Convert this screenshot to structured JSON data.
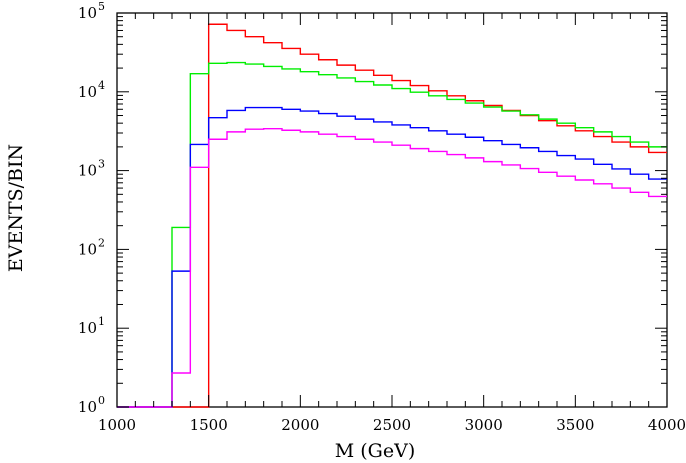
{
  "chart_data": {
    "type": "line",
    "xlabel": "M (GeV)",
    "ylabel": "EVENTS/BIN",
    "xlim": [
      1000,
      4000
    ],
    "ylim": [
      1,
      100000
    ],
    "yscale": "log",
    "step": true,
    "bin_width": 100,
    "x_ticks": [
      "1000",
      "1500",
      "2000",
      "2500",
      "3000",
      "3500",
      "4000"
    ],
    "y_ticks": [
      {
        "base": "10",
        "exp": "0",
        "value": 1
      },
      {
        "base": "10",
        "exp": "1",
        "value": 10
      },
      {
        "base": "10",
        "exp": "2",
        "value": 100
      },
      {
        "base": "10",
        "exp": "3",
        "value": 1000
      },
      {
        "base": "10",
        "exp": "4",
        "value": 10000
      },
      {
        "base": "10",
        "exp": "5",
        "value": 100000
      }
    ],
    "grid": false,
    "x_bin_edges": [
      1000,
      1100,
      1200,
      1300,
      1400,
      1500,
      1600,
      1700,
      1800,
      1900,
      2000,
      2100,
      2200,
      2300,
      2400,
      2500,
      2600,
      2700,
      2800,
      2900,
      3000,
      3100,
      3200,
      3300,
      3400,
      3500,
      3600,
      3700,
      3800,
      3900,
      4000
    ],
    "series": [
      {
        "color": "#ff0000",
        "values": [
          1,
          1,
          1,
          1,
          1,
          72000,
          60000,
          50000,
          42000,
          35500,
          30000,
          25500,
          21800,
          18800,
          16200,
          13900,
          12000,
          10300,
          8900,
          7700,
          6700,
          5800,
          5000,
          4300,
          3700,
          3200,
          2700,
          2300,
          2000,
          1700
        ]
      },
      {
        "color": "#00ee00",
        "values": [
          1,
          1,
          1,
          190,
          17000,
          23000,
          23500,
          22500,
          21000,
          19500,
          18000,
          16500,
          15000,
          13500,
          12200,
          11000,
          9900,
          8900,
          8000,
          7200,
          6400,
          5700,
          5100,
          4500,
          4000,
          3500,
          3100,
          2700,
          2300,
          2000
        ]
      },
      {
        "color": "#0000ff",
        "values": [
          1,
          1,
          1,
          53,
          2150,
          4700,
          5800,
          6300,
          6300,
          6000,
          5700,
          5300,
          4900,
          4500,
          4150,
          3800,
          3500,
          3200,
          2900,
          2650,
          2400,
          2150,
          1950,
          1750,
          1550,
          1400,
          1200,
          1050,
          900,
          780
        ]
      },
      {
        "color": "#ff00ff",
        "values": [
          1,
          1,
          1,
          2.7,
          1100,
          2500,
          3100,
          3350,
          3400,
          3250,
          3100,
          2900,
          2700,
          2500,
          2300,
          2100,
          1900,
          1750,
          1600,
          1450,
          1300,
          1180,
          1060,
          950,
          850,
          760,
          680,
          600,
          530,
          470
        ]
      }
    ]
  }
}
